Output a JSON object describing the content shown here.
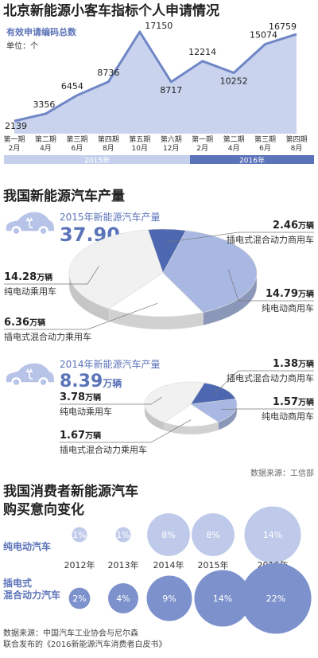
{
  "chart_data": [
    {
      "type": "area",
      "title": "北京新能源小客车指标个人申请情况",
      "subtitle": "有效申请编码总数",
      "unit_label": "单位：个",
      "categories": [
        "第一期\n2月",
        "第二期\n4月",
        "第三期\n6月",
        "第四期\n8月",
        "第五期\n10月",
        "第六期\n12月",
        "第一期\n2月",
        "第二期\n4月",
        "第三期\n6月",
        "第四期\n8月"
      ],
      "values": [
        2139,
        3356,
        6454,
        8736,
        17150,
        8717,
        12214,
        10252,
        15074,
        16759
      ],
      "groups": [
        {
          "name": "2015年",
          "count": 6,
          "color": "#c5d0ec"
        },
        {
          "name": "2016年",
          "count": 4,
          "color": "#5b73b8"
        }
      ],
      "color": "#6f86c6",
      "fill": "#c9d3ee"
    },
    {
      "type": "pie3d",
      "title": "我国新能源汽车产量",
      "headline": "2015年新能源汽车产量",
      "total": 37.9,
      "total_label": "37.90",
      "unit": "万辆",
      "categories": [
        "插电式混合动力商用车",
        "纯电动商用车",
        "插电式混合动力乘用车",
        "纯电动乘用车"
      ],
      "values": [
        2.46,
        14.79,
        6.36,
        14.28
      ],
      "colors": [
        "#4d68b0",
        "#a9b8e2",
        "#ffffff",
        "#f1f1f1"
      ]
    },
    {
      "type": "pie3d",
      "headline": "2014年新能源汽车产量",
      "total": 8.39,
      "unit": "万辆",
      "categories": [
        "插电式混合动力商用车",
        "纯电动商用车",
        "插电式混合动力乘用车",
        "纯电动乘用车"
      ],
      "values": [
        1.38,
        1.57,
        1.67,
        3.78
      ],
      "colors": [
        "#4d68b0",
        "#a9b8e2",
        "#ffffff",
        "#f1f1f1"
      ],
      "source": "数据来源：工信部"
    },
    {
      "type": "bubble",
      "title": "我国消费者新能源汽车\n购买意向变化",
      "categories": [
        "2012年",
        "2013年",
        "2014年",
        "2015年",
        "2016年"
      ],
      "series": [
        {
          "name": "纯电动汽车",
          "color": "#bfcaea",
          "values": [
            1,
            1,
            8,
            8,
            14
          ],
          "value_labels": [
            "1%",
            "1%",
            "8%",
            "8%",
            "14%"
          ]
        },
        {
          "name": "插电式\n混合动力汽车",
          "color": "#7d92cc",
          "values": [
            2,
            4,
            9,
            14,
            22
          ],
          "value_labels": [
            "2%",
            "4%",
            "9%",
            "14%",
            "22%"
          ]
        }
      ],
      "source": "数据来源：中国汽车工业协会与尼尔森\n联合发布的《2016新能源汽车消费者白皮书》"
    }
  ]
}
